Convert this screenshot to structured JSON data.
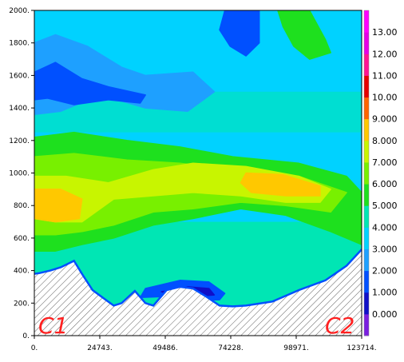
{
  "chart_data": {
    "type": "heatmap",
    "title": "",
    "xlabel": "",
    "ylabel": "",
    "xlim": [
      0,
      123714
    ],
    "ylim": [
      0,
      2000
    ],
    "x_ticks": [
      "0.",
      "24743.",
      "49486.",
      "74228.",
      "98971.",
      "123714."
    ],
    "y_ticks": [
      "0.",
      "200.",
      "400.",
      "600.",
      "800.",
      "1000.",
      "1200.",
      "1400.",
      "1600.",
      "1800.",
      "2000."
    ],
    "colorbar": {
      "labels": [
        "0.000",
        "1.000",
        "2.000",
        "3.000",
        "4.000",
        "5.000",
        "6.000",
        "7.000",
        "8.000",
        "9.000",
        "10.00",
        "11.00",
        "12.00",
        "13.00"
      ],
      "colors": [
        "#7a1fe0",
        "#1010c8",
        "#0050ff",
        "#1ea0ff",
        "#00d2ff",
        "#00e6b4",
        "#1ee01e",
        "#78f000",
        "#c8f500",
        "#ffc800",
        "#ff6400",
        "#e60000",
        "#ff1493",
        "#e600e6",
        "#ff00ff"
      ]
    },
    "terrain_profile": {
      "x": [
        0,
        2000,
        6000,
        10000,
        15000,
        18000,
        22000,
        27000,
        30000,
        33000,
        38000,
        42000,
        45000,
        50000,
        55000,
        60000,
        65000,
        70000,
        75000,
        80000,
        90000,
        100000,
        110000,
        118000,
        123714
      ],
      "y": [
        380,
        385,
        400,
        420,
        460,
        380,
        280,
        220,
        185,
        200,
        275,
        200,
        185,
        280,
        300,
        290,
        240,
        185,
        180,
        185,
        210,
        280,
        340,
        430,
        530
      ]
    },
    "contours": [
      {
        "level": 2,
        "points": [
          [
            0,
            1800
          ],
          [
            8000,
            1850
          ],
          [
            20000,
            1780
          ],
          [
            33000,
            1650
          ],
          [
            42000,
            1600
          ],
          [
            60000,
            1620
          ],
          [
            68000,
            1500
          ],
          [
            58000,
            1380
          ],
          [
            42000,
            1400
          ],
          [
            25000,
            1480
          ],
          [
            10000,
            1380
          ],
          [
            0,
            1360
          ]
        ]
      },
      {
        "level": 1,
        "points": [
          [
            0,
            1620
          ],
          [
            8000,
            1680
          ],
          [
            18000,
            1580
          ],
          [
            28000,
            1530
          ],
          [
            42000,
            1480
          ],
          [
            40000,
            1430
          ],
          [
            28000,
            1450
          ],
          [
            15000,
            1420
          ],
          [
            5000,
            1460
          ],
          [
            0,
            1450
          ]
        ]
      },
      {
        "level": 5,
        "points": [
          [
            0,
            1220
          ],
          [
            15000,
            1250
          ],
          [
            35000,
            1200
          ],
          [
            55000,
            1160
          ],
          [
            75000,
            1100
          ],
          [
            100000,
            1060
          ],
          [
            118000,
            980
          ],
          [
            123714,
            880
          ],
          [
            123714,
            560
          ],
          [
            112000,
            640
          ],
          [
            95000,
            740
          ],
          [
            78000,
            780
          ],
          [
            60000,
            720
          ],
          [
            45000,
            680
          ],
          [
            30000,
            600
          ],
          [
            18000,
            560
          ],
          [
            8000,
            520
          ],
          [
            0,
            520
          ]
        ]
      },
      {
        "level": 6,
        "points": [
          [
            0,
            1100
          ],
          [
            15000,
            1120
          ],
          [
            35000,
            1080
          ],
          [
            55000,
            1060
          ],
          [
            75000,
            1020
          ],
          [
            100000,
            980
          ],
          [
            118000,
            880
          ],
          [
            112000,
            760
          ],
          [
            95000,
            800
          ],
          [
            78000,
            820
          ],
          [
            60000,
            780
          ],
          [
            45000,
            760
          ],
          [
            30000,
            680
          ],
          [
            18000,
            640
          ],
          [
            8000,
            620
          ],
          [
            0,
            620
          ]
        ]
      },
      {
        "level": 7,
        "points": [
          [
            0,
            980
          ],
          [
            12000,
            980
          ],
          [
            28000,
            940
          ],
          [
            45000,
            1020
          ],
          [
            60000,
            1060
          ],
          [
            80000,
            1040
          ],
          [
            100000,
            980
          ],
          [
            112000,
            900
          ],
          [
            108000,
            820
          ],
          [
            95000,
            820
          ],
          [
            78000,
            860
          ],
          [
            60000,
            880
          ],
          [
            45000,
            860
          ],
          [
            30000,
            840
          ],
          [
            18000,
            700
          ],
          [
            8000,
            700
          ],
          [
            0,
            720
          ]
        ]
      },
      {
        "level": 8,
        "points": [
          [
            80000,
            1000
          ],
          [
            94000,
            990
          ],
          [
            108000,
            920
          ],
          [
            108000,
            860
          ],
          [
            95000,
            860
          ],
          [
            82000,
            880
          ],
          [
            78000,
            940
          ]
        ]
      },
      {
        "level": 8,
        "points": [
          [
            0,
            900
          ],
          [
            10000,
            900
          ],
          [
            18000,
            840
          ],
          [
            17000,
            720
          ],
          [
            8000,
            700
          ],
          [
            0,
            720
          ]
        ]
      },
      {
        "level": 3,
        "points": [
          [
            90000,
            2000
          ],
          [
            105000,
            2000
          ],
          [
            112000,
            1800
          ],
          [
            118000,
            1720
          ],
          [
            110000,
            1620
          ],
          [
            98000,
            1700
          ],
          [
            92000,
            1850
          ]
        ]
      },
      {
        "level": 5,
        "points": [
          [
            92000,
            2000
          ],
          [
            104000,
            2000
          ],
          [
            110000,
            1820
          ],
          [
            112000,
            1740
          ],
          [
            104000,
            1700
          ],
          [
            98000,
            1780
          ],
          [
            94000,
            1900
          ]
        ]
      },
      {
        "level": 1,
        "points": [
          [
            72000,
            2000
          ],
          [
            85000,
            2000
          ],
          [
            85000,
            1800
          ],
          [
            80000,
            1720
          ],
          [
            74000,
            1780
          ],
          [
            70000,
            1880
          ]
        ]
      },
      {
        "level": 1,
        "points": [
          [
            42000,
            290
          ],
          [
            55000,
            340
          ],
          [
            66000,
            330
          ],
          [
            72000,
            260
          ],
          [
            70000,
            220
          ],
          [
            58000,
            220
          ],
          [
            48000,
            240
          ],
          [
            40000,
            235
          ]
        ]
      },
      {
        "level": 0,
        "points": [
          [
            48000,
            270
          ],
          [
            58000,
            300
          ],
          [
            66000,
            290
          ],
          [
            68000,
            250
          ],
          [
            60000,
            240
          ],
          [
            52000,
            245
          ]
        ]
      }
    ]
  },
  "section_labels": {
    "start": "C1",
    "end": "C2"
  }
}
